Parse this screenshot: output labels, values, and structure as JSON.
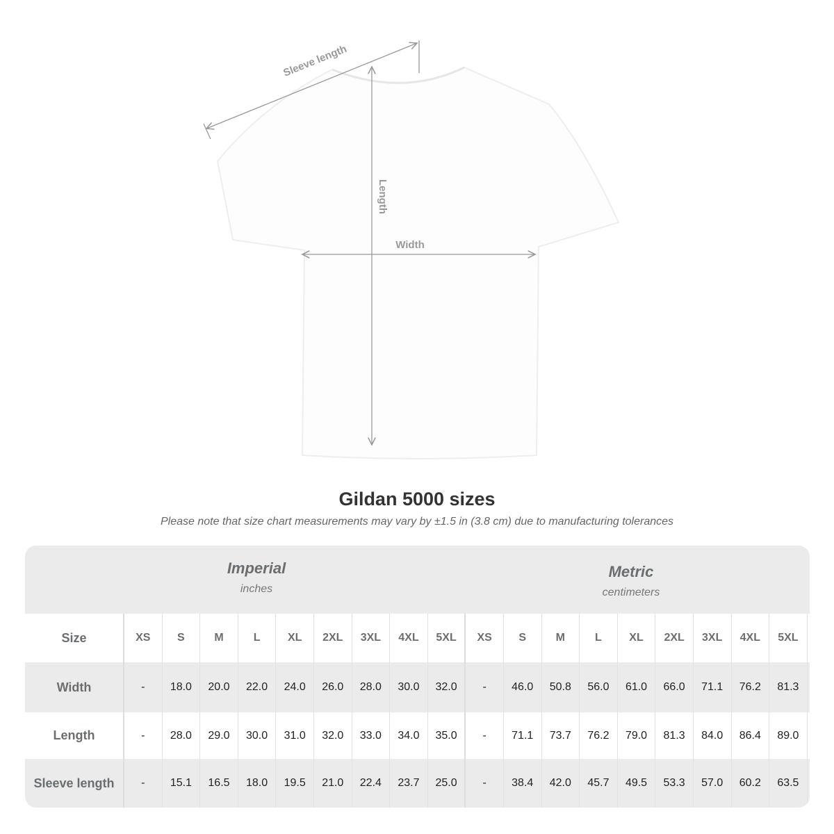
{
  "diagram": {
    "sleeve_label": "Sleeve length",
    "length_label": "Length",
    "width_label": "Width"
  },
  "title": "Gildan 5000 sizes",
  "note": "Please note that size chart measurements may vary by ±1.5 in (3.8 cm) due to manufacturing tolerances",
  "imperial": {
    "name": "Imperial",
    "unit": "inches"
  },
  "metric": {
    "name": "Metric",
    "unit": "centimeters"
  },
  "table": {
    "size_label": "Size",
    "sizes": [
      "XS",
      "S",
      "M",
      "L",
      "XL",
      "2XL",
      "3XL",
      "4XL",
      "5XL"
    ],
    "rows": [
      {
        "label": "Width",
        "imperial": [
          "-",
          "18.0",
          "20.0",
          "22.0",
          "24.0",
          "26.0",
          "28.0",
          "30.0",
          "32.0"
        ],
        "metric": [
          "-",
          "46.0",
          "50.8",
          "56.0",
          "61.0",
          "66.0",
          "71.1",
          "76.2",
          "81.3"
        ]
      },
      {
        "label": "Length",
        "imperial": [
          "-",
          "28.0",
          "29.0",
          "30.0",
          "31.0",
          "32.0",
          "33.0",
          "34.0",
          "35.0"
        ],
        "metric": [
          "-",
          "71.1",
          "73.7",
          "76.2",
          "79.0",
          "81.3",
          "84.0",
          "86.4",
          "89.0"
        ]
      },
      {
        "label": "Sleeve length",
        "imperial": [
          "-",
          "15.1",
          "16.5",
          "18.0",
          "19.5",
          "21.0",
          "22.4",
          "23.7",
          "25.0"
        ],
        "metric": [
          "-",
          "38.4",
          "42.0",
          "45.7",
          "49.5",
          "53.3",
          "57.0",
          "60.2",
          "63.5"
        ]
      }
    ]
  }
}
